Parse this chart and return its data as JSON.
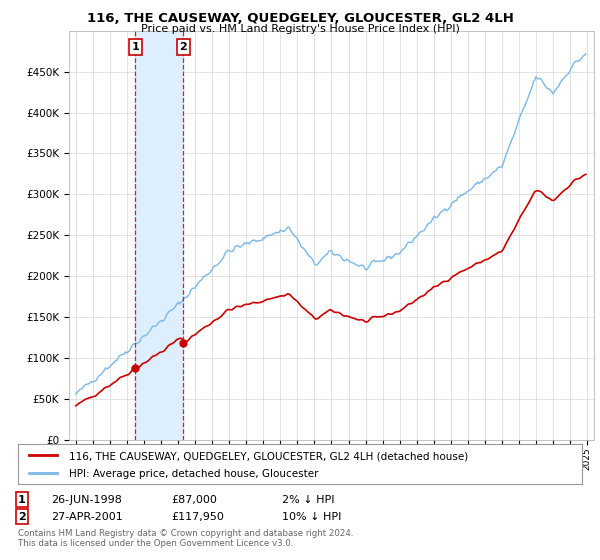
{
  "title": "116, THE CAUSEWAY, QUEDGELEY, GLOUCESTER, GL2 4LH",
  "subtitle": "Price paid vs. HM Land Registry's House Price Index (HPI)",
  "hpi_color": "#7ab8e8",
  "price_color": "#cc0000",
  "vline_color": "#cc0000",
  "shade_color": "#ddeeff",
  "background_color": "#ffffff",
  "grid_color": "#dddddd",
  "legend_label_price": "116, THE CAUSEWAY, QUEDGELEY, GLOUCESTER, GL2 4LH (detached house)",
  "legend_label_hpi": "HPI: Average price, detached house, Gloucester",
  "transaction1_date": "26-JUN-1998",
  "transaction1_price": "£87,000",
  "transaction1_hpi": "2% ↓ HPI",
  "transaction2_date": "27-APR-2001",
  "transaction2_price": "£117,950",
  "transaction2_hpi": "10% ↓ HPI",
  "footer": "Contains HM Land Registry data © Crown copyright and database right 2024.\nThis data is licensed under the Open Government Licence v3.0.",
  "t1_year": 1998.49,
  "t2_year": 2001.3,
  "t1_price": 87000,
  "t2_price": 117950
}
